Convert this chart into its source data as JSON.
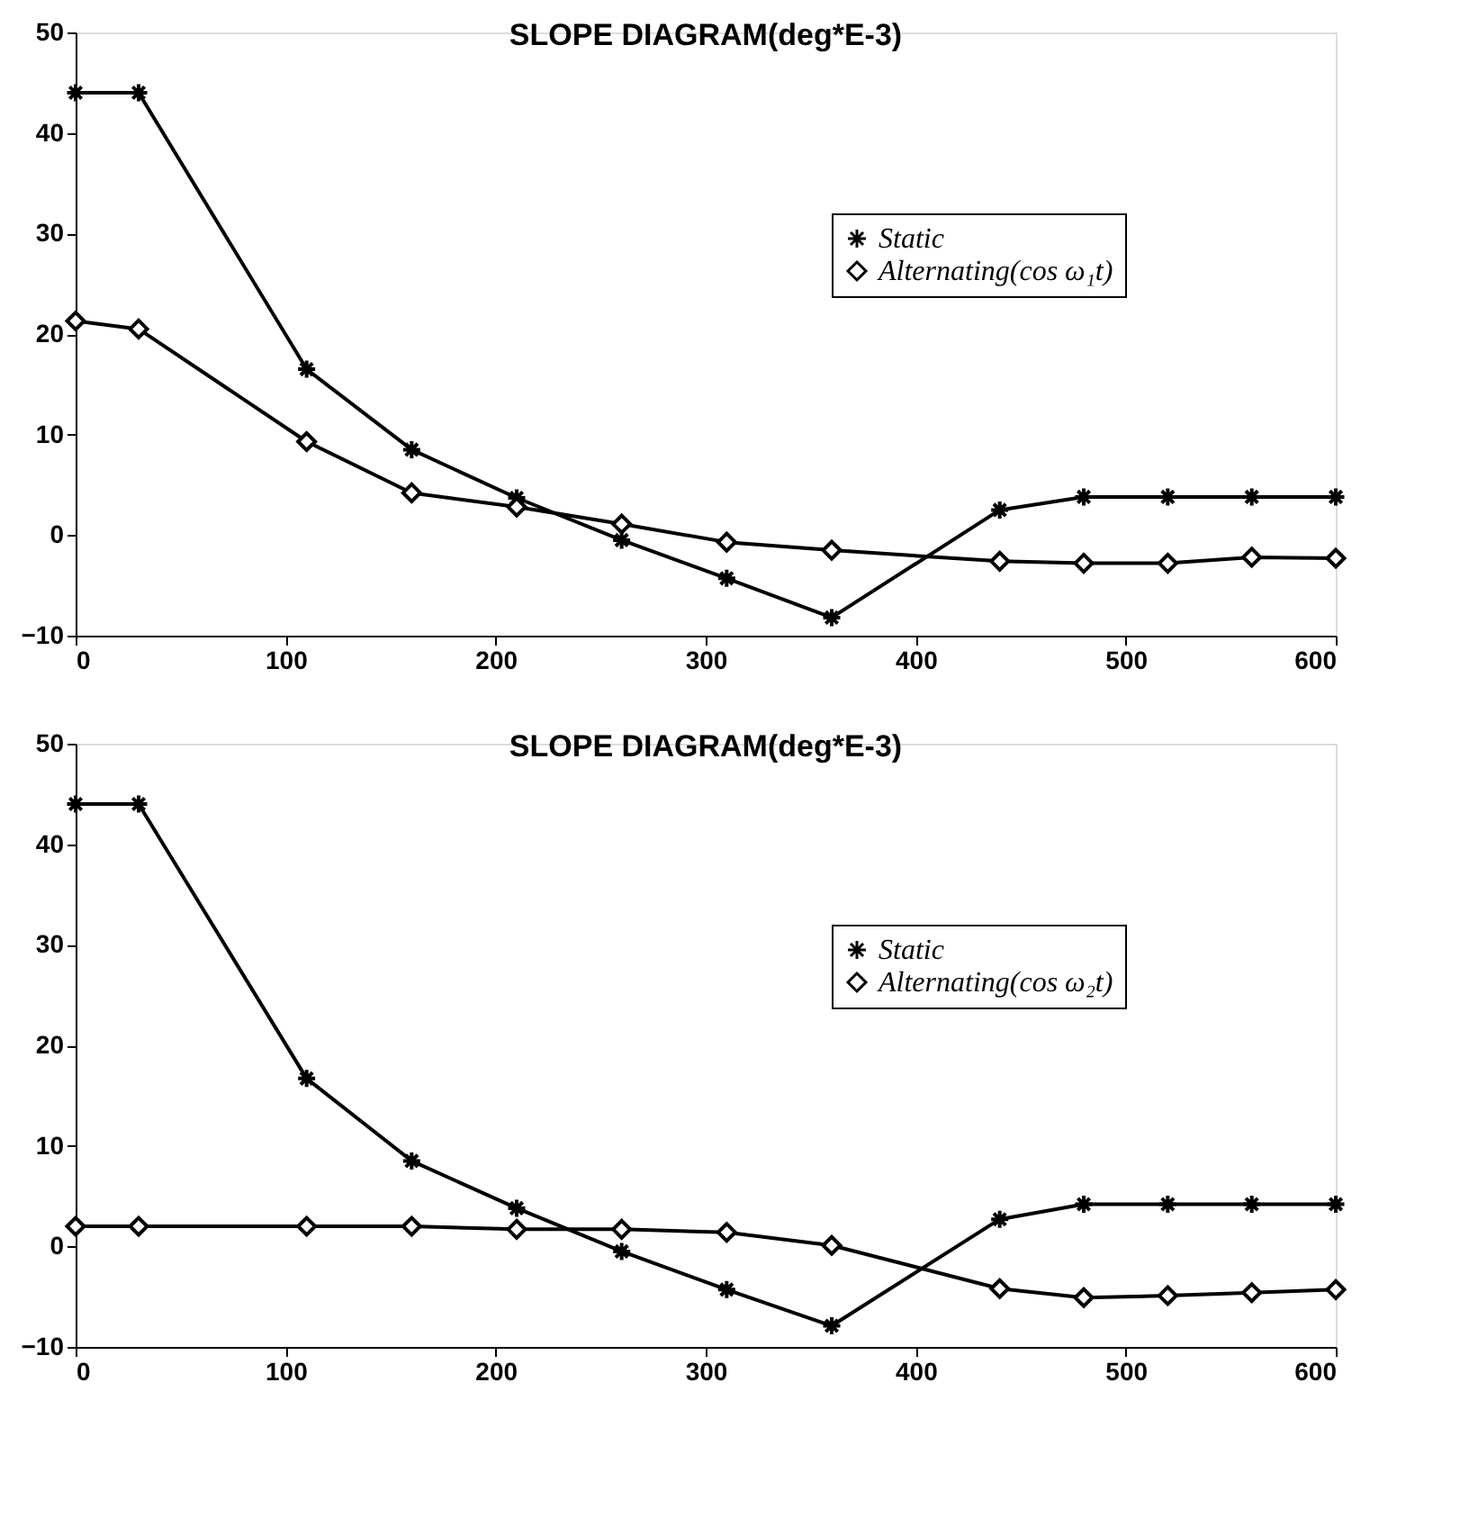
{
  "chart_data": [
    {
      "type": "line",
      "title": "SLOPE DIAGRAM(deg*E-3)",
      "x": [
        0,
        30,
        110,
        160,
        210,
        260,
        310,
        360,
        440,
        480,
        520,
        560,
        600
      ],
      "series": [
        {
          "name": "Static",
          "color": "#000000",
          "marker": "cross",
          "values": [
            44,
            44,
            16.5,
            8.5,
            3.7,
            -0.5,
            -4.3,
            -8.2,
            2.5,
            3.8,
            3.8,
            3.8,
            3.8
          ]
        },
        {
          "name": "Alternating(cos ω₁t)",
          "color": "#000000",
          "marker": "diamond",
          "values": [
            21.3,
            20.5,
            9.3,
            4.2,
            2.8,
            1.1,
            -0.7,
            -1.5,
            -2.6,
            -2.8,
            -2.8,
            -2.2,
            -2.3
          ]
        }
      ],
      "xlim": [
        0,
        600
      ],
      "xticks": [
        0,
        100,
        200,
        300,
        400,
        500,
        600
      ],
      "ylim": [
        -10,
        50
      ],
      "yticks": [
        -10,
        0,
        10,
        20,
        30,
        40,
        50
      ],
      "grid": false,
      "legend": "right"
    },
    {
      "type": "line",
      "title": "SLOPE DIAGRAM(deg*E-3)",
      "x": [
        0,
        30,
        110,
        160,
        210,
        260,
        310,
        360,
        440,
        480,
        520,
        560,
        600
      ],
      "series": [
        {
          "name": "Static",
          "color": "#000000",
          "marker": "cross",
          "values": [
            44,
            44,
            16.7,
            8.5,
            3.8,
            -0.5,
            -4.3,
            -7.9,
            2.7,
            4.2,
            4.2,
            4.2,
            4.2
          ]
        },
        {
          "name": "Alternating(cos ω₂t)",
          "color": "#000000",
          "marker": "diamond",
          "values": [
            2.0,
            2.0,
            2.0,
            2.0,
            1.7,
            1.7,
            1.4,
            0.1,
            -4.2,
            -5.1,
            -4.9,
            -4.6,
            -4.3
          ]
        }
      ],
      "xlim": [
        0,
        600
      ],
      "xticks": [
        0,
        100,
        200,
        300,
        400,
        500,
        600
      ],
      "ylim": [
        -10,
        50
      ],
      "yticks": [
        -10,
        0,
        10,
        20,
        30,
        40,
        50
      ],
      "grid": false,
      "legend": "right"
    }
  ]
}
